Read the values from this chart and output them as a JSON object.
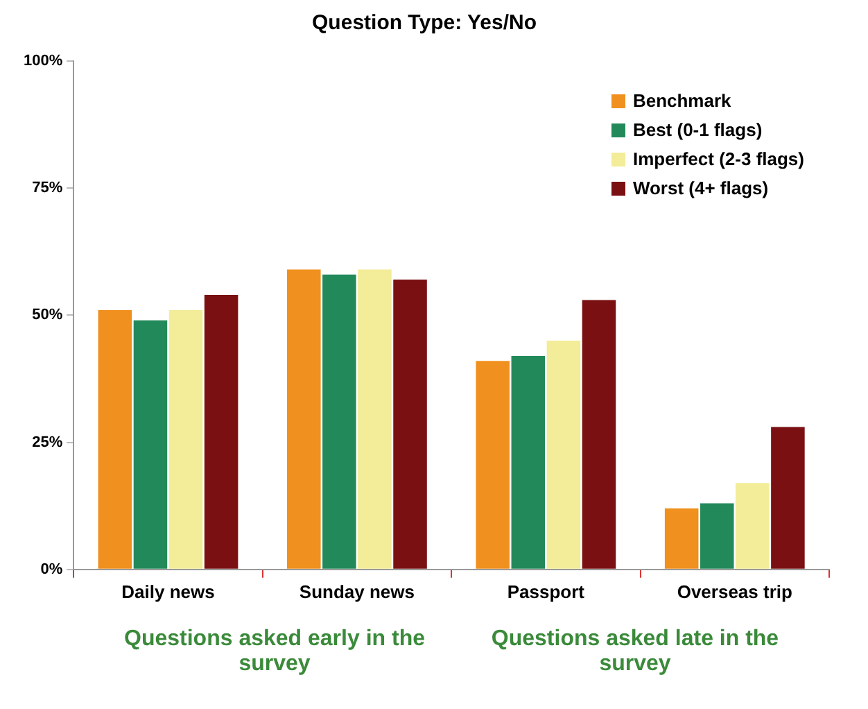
{
  "chart_data": {
    "type": "bar",
    "title": "Question Type: Yes/No",
    "categories": [
      "Daily news",
      "Sunday news",
      "Passport",
      "Overseas trip"
    ],
    "series": [
      {
        "name": "Benchmark",
        "color": "#f0901e",
        "values": [
          51,
          59,
          41,
          12
        ]
      },
      {
        "name": "Best (0-1 flags)",
        "color": "#228a5a",
        "values": [
          49,
          58,
          42,
          13
        ]
      },
      {
        "name": "Imperfect (2-3 flags)",
        "color": "#f3ec98",
        "values": [
          51,
          59,
          45,
          17
        ]
      },
      {
        "name": "Worst (4+ flags)",
        "color": "#7a1012",
        "values": [
          54,
          57,
          53,
          28
        ]
      }
    ],
    "ylim": [
      0,
      100
    ],
    "yticks": [
      {
        "value": 0,
        "label": "0%"
      },
      {
        "value": 25,
        "label": "25%"
      },
      {
        "value": 50,
        "label": "50%"
      },
      {
        "value": 75,
        "label": "75%"
      },
      {
        "value": 100,
        "label": "100%"
      }
    ],
    "grid": false,
    "legend": "top right",
    "annotations": [
      "Questions asked early in the survey",
      "Questions asked late in the survey"
    ]
  }
}
